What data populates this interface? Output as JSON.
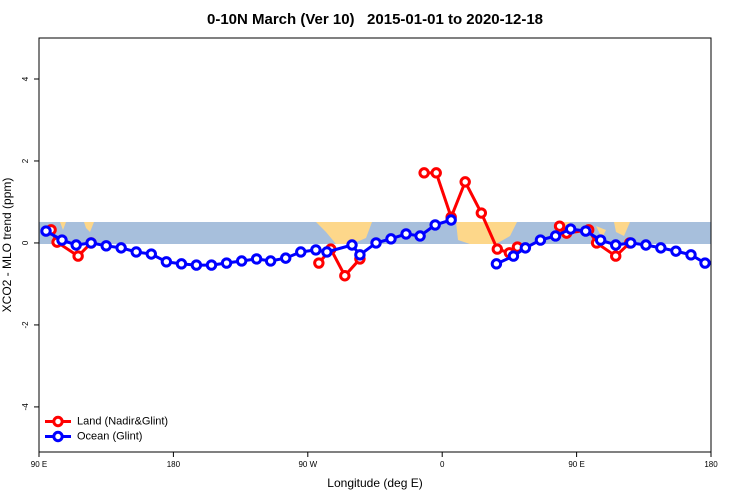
{
  "chart_data": {
    "type": "line",
    "title": "0-10N March (Ver 10)   2015-01-01 to 2020-12-18",
    "x_label": "Longitude (deg E)",
    "y_label": "XCO2 - MLO trend (ppm)",
    "xlim": [
      90,
      540
    ],
    "xticks": [
      {
        "value": 90,
        "label": "90 E"
      },
      180,
      {
        "value": 270,
        "label": "90 W"
      },
      {
        "value": 360,
        "label": "0"
      },
      {
        "value": 450,
        "label": "90 E"
      },
      {
        "value": 540,
        "label": "180"
      }
    ],
    "ylim": [
      -5.1,
      5
    ],
    "yticks": [
      -4,
      -2,
      0,
      2,
      4
    ],
    "legend": "bottomleft",
    "series": [
      {
        "name": "Land (Nadir&Glint)",
        "color": "#ff0000",
        "x": [
          98.1,
          102.1,
          116.2,
          124.9,
          null,
          277.4,
          285.4,
          294.8,
          304.9,
          null,
          347.9,
          356,
          366,
          375.4,
          386.2,
          396.9,
          405,
          410.4,
          null,
          438.6,
          443.3,
          458.1,
          463.4,
          476.2,
          485.6
        ],
        "values": [
          0.32,
          0.02,
          -0.32,
          0,
          null,
          -0.49,
          -0.15,
          -0.8,
          -0.39,
          null,
          1.71,
          1.71,
          0.63,
          1.49,
          0.73,
          -0.15,
          -0.24,
          -0.1,
          null,
          0.41,
          0.24,
          0.32,
          0,
          -0.32,
          0
        ]
      },
      {
        "name": "Ocean (Glint)",
        "color": "#0000ff",
        "x": [
          94.7,
          105.4,
          114.9,
          124.9,
          135,
          145,
          155.1,
          165.2,
          175.3,
          185.4,
          195.4,
          205.5,
          215.6,
          225.7,
          235.7,
          245.1,
          255.2,
          265.3,
          275.4,
          282.8,
          299.6,
          304.9,
          315.7,
          325.7,
          335.8,
          345.2,
          355.3,
          366,
          null,
          396.3,
          407.7,
          415.7,
          425.8,
          435.9,
          446,
          456.1,
          466.1,
          476.2,
          486.3,
          496.4,
          506.4,
          516.5,
          526.6,
          536
        ],
        "values": [
          0.29,
          0.07,
          -0.05,
          0,
          -0.07,
          -0.12,
          -0.22,
          -0.27,
          -0.46,
          -0.51,
          -0.54,
          -0.54,
          -0.49,
          -0.44,
          -0.39,
          -0.44,
          -0.37,
          -0.22,
          -0.17,
          -0.22,
          -0.05,
          -0.29,
          0,
          0.1,
          0.22,
          0.17,
          0.44,
          0.56,
          null,
          -0.51,
          -0.32,
          -0.12,
          0.07,
          0.17,
          0.34,
          0.29,
          0.07,
          -0.05,
          0,
          -0.05,
          -0.12,
          -0.2,
          -0.29,
          -0.49
        ]
      }
    ]
  }
}
